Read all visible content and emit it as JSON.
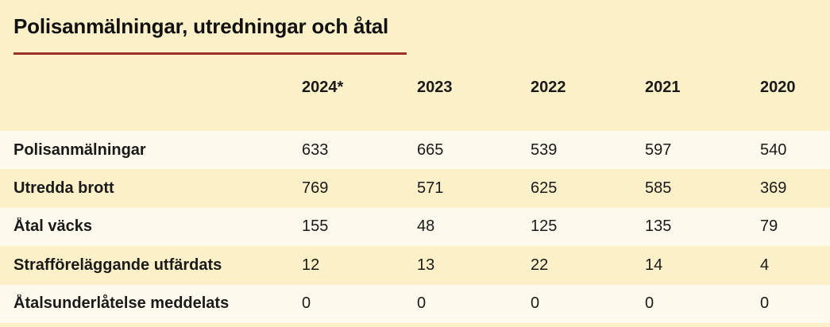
{
  "title": "Polisanmälningar, utredningar och åtal",
  "colors": {
    "background": "#FBF0C8",
    "row_highlight": "#FDF9EC",
    "title_rule": "#9E3127",
    "text": "#1A1A1A"
  },
  "table": {
    "columns": [
      "2024*",
      "2023",
      "2022",
      "2021",
      "2020"
    ],
    "rows": [
      {
        "label": "Polisanmälningar",
        "values": [
          "633",
          "665",
          "539",
          "597",
          "540"
        ]
      },
      {
        "label": "Utredda brott",
        "values": [
          "769",
          "571",
          "625",
          "585",
          "369"
        ]
      },
      {
        "label": "Åtal väcks",
        "values": [
          "155",
          "48",
          "125",
          "135",
          "79"
        ]
      },
      {
        "label": "Strafföreläggande utfärdats",
        "values": [
          "12",
          "13",
          "22",
          "14",
          "4"
        ]
      },
      {
        "label": "Åtalsunderlåtelse meddelats",
        "values": [
          "0",
          "0",
          "0",
          "0",
          "0"
        ]
      }
    ]
  },
  "chart_data": {
    "type": "table",
    "title": "Polisanmälningar, utredningar och åtal",
    "categories": [
      "2024*",
      "2023",
      "2022",
      "2021",
      "2020"
    ],
    "series": [
      {
        "name": "Polisanmälningar",
        "values": [
          633,
          665,
          539,
          597,
          540
        ]
      },
      {
        "name": "Utredda brott",
        "values": [
          769,
          571,
          625,
          585,
          369
        ]
      },
      {
        "name": "Åtal väcks",
        "values": [
          155,
          48,
          125,
          135,
          79
        ]
      },
      {
        "name": "Strafföreläggande utfärdats",
        "values": [
          12,
          13,
          22,
          14,
          4
        ]
      },
      {
        "name": "Åtalsunderlåtelse meddelats",
        "values": [
          0,
          0,
          0,
          0,
          0
        ]
      }
    ]
  }
}
